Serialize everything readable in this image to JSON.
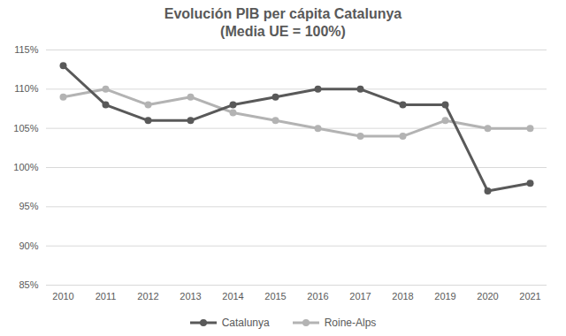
{
  "chart_data": {
    "type": "line",
    "title": "Evolución PIB per cápita Catalunya",
    "subtitle": "(Media UE = 100%)",
    "categories": [
      "2010",
      "2011",
      "2012",
      "2013",
      "2014",
      "2015",
      "2016",
      "2017",
      "2018",
      "2019",
      "2020",
      "2021"
    ],
    "series": [
      {
        "name": "Catalunya",
        "color": "#595959",
        "marker": "circle",
        "values": [
          113,
          108,
          106,
          106,
          108,
          109,
          110,
          110,
          108,
          108,
          97,
          98
        ]
      },
      {
        "name": "Roine-Alps",
        "color": "#b3b3b3",
        "marker": "circle",
        "values": [
          109,
          110,
          108,
          109,
          107,
          106,
          105,
          104,
          104,
          106,
          105,
          105
        ]
      }
    ],
    "ylim": [
      85,
      115
    ],
    "yticks": [
      {
        "value": 85,
        "label": "85%"
      },
      {
        "value": 90,
        "label": "90%"
      },
      {
        "value": 95,
        "label": "95%"
      },
      {
        "value": 100,
        "label": "100%"
      },
      {
        "value": 105,
        "label": "105%"
      },
      {
        "value": 110,
        "label": "110%"
      },
      {
        "value": 115,
        "label": "115%"
      }
    ],
    "grid": true,
    "legend": "bottom"
  }
}
